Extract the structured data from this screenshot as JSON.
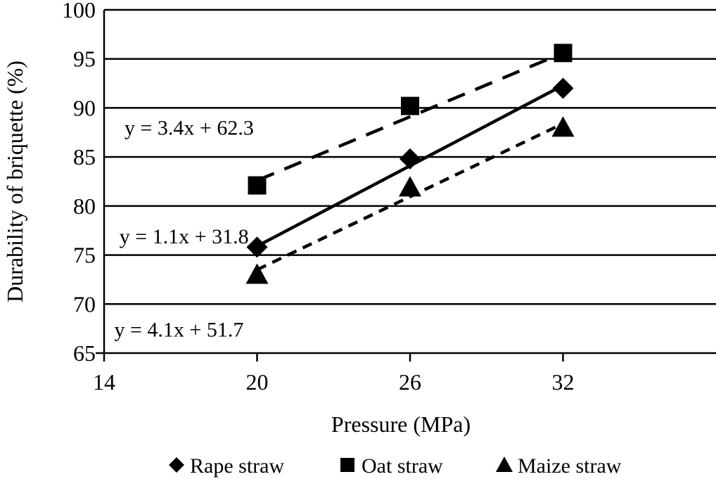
{
  "chart_data": {
    "type": "scatter",
    "xlabel": "Pressure (MPa)",
    "ylabel": "Durability of briquette (%)",
    "xlim": [
      14,
      38
    ],
    "ylim": [
      65,
      100
    ],
    "xticks": [
      14,
      20,
      26,
      32
    ],
    "yticks": [
      65,
      70,
      75,
      80,
      85,
      90,
      95,
      100
    ],
    "grid": "horizontal",
    "legend_position": "bottom",
    "series": [
      {
        "name": "Rape straw",
        "marker": "diamond",
        "line": "solid",
        "x": [
          20,
          26,
          32
        ],
        "y": [
          75.8,
          84.8,
          92.0
        ],
        "trend_start": 75.9,
        "trend_end": 92.3
      },
      {
        "name": "Oat straw",
        "marker": "square",
        "line": "long-dash",
        "x": [
          20,
          26,
          32
        ],
        "y": [
          82.1,
          90.2,
          95.6
        ],
        "trend_start": 82.6,
        "trend_end": 95.6
      },
      {
        "name": "Maize straw",
        "marker": "triangle",
        "line": "short-dash",
        "x": [
          20,
          26,
          32
        ],
        "y": [
          73.0,
          81.9,
          88.0
        ],
        "trend_start": 73.5,
        "trend_end": 88.4
      }
    ],
    "annotations": [
      {
        "text": "y = 3.4x + 62.3",
        "x": 14.8,
        "y": 88.0
      },
      {
        "text": "y = 1.1x + 31.8",
        "x": 14.6,
        "y": 76.9
      },
      {
        "text": "y = 4.1x + 51.7",
        "x": 14.4,
        "y": 67.4
      }
    ]
  }
}
